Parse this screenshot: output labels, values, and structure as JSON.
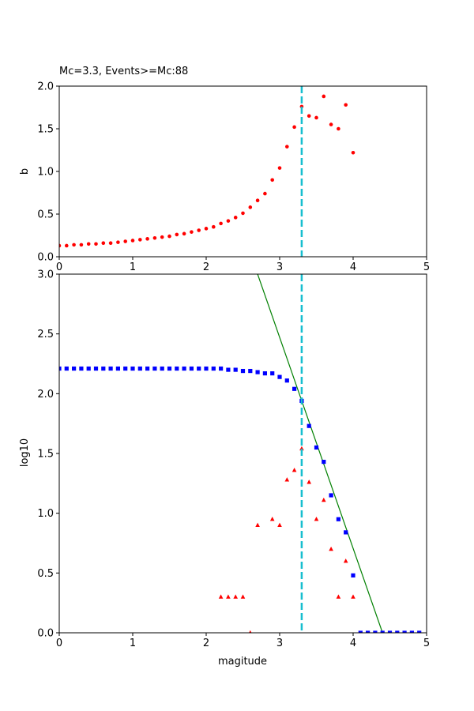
{
  "chart_data": [
    {
      "type": "scatter",
      "title": "Mc=3.3, Events>=Mc:88",
      "xlabel": "",
      "ylabel": "b",
      "xlim": [
        0,
        5
      ],
      "ylim": [
        0,
        2.0
      ],
      "xticks": [
        "0",
        "1",
        "2",
        "3",
        "4",
        "5"
      ],
      "yticks": [
        "0.0",
        "0.5",
        "1.0",
        "1.5",
        "2.0"
      ],
      "grid": false,
      "mc_line": {
        "x": 3.3,
        "color": "#17becf",
        "style": "dashed"
      },
      "series": [
        {
          "marker": "circle",
          "color": "#ff0000",
          "x": [
            0.0,
            0.1,
            0.2,
            0.3,
            0.4,
            0.5,
            0.6,
            0.7,
            0.8,
            0.9,
            1.0,
            1.1,
            1.2,
            1.3,
            1.4,
            1.5,
            1.6,
            1.7,
            1.8,
            1.9,
            2.0,
            2.1,
            2.2,
            2.3,
            2.4,
            2.5,
            2.6,
            2.7,
            2.8,
            2.9,
            3.0,
            3.1,
            3.2,
            3.3,
            3.4,
            3.5,
            3.6,
            3.7,
            3.8,
            3.9,
            4.0
          ],
          "y": [
            0.13,
            0.13,
            0.14,
            0.14,
            0.15,
            0.15,
            0.16,
            0.16,
            0.17,
            0.18,
            0.19,
            0.2,
            0.21,
            0.22,
            0.23,
            0.24,
            0.26,
            0.27,
            0.29,
            0.31,
            0.33,
            0.35,
            0.39,
            0.42,
            0.46,
            0.51,
            0.58,
            0.66,
            0.74,
            0.9,
            1.04,
            1.29,
            1.52,
            1.76,
            1.65,
            1.63,
            1.88,
            1.55,
            1.5,
            1.78,
            1.22
          ]
        }
      ]
    },
    {
      "type": "scatter",
      "title": "",
      "xlabel": "magitude",
      "ylabel": "log10",
      "xlim": [
        0,
        5
      ],
      "ylim": [
        0,
        3.0
      ],
      "xticks": [
        "0",
        "1",
        "2",
        "3",
        "4",
        "5"
      ],
      "yticks": [
        "0.0",
        "0.5",
        "1.0",
        "1.5",
        "2.0",
        "2.5",
        "3.0"
      ],
      "grid": false,
      "mc_line": {
        "x": 3.3,
        "color": "#17becf",
        "style": "dashed"
      },
      "fit_line": {
        "color": "#008000",
        "x": [
          2.7,
          4.4
        ],
        "y": [
          3.0,
          0.0
        ]
      },
      "series": [
        {
          "marker": "square",
          "color": "#0000ff",
          "x": [
            0.0,
            0.1,
            0.2,
            0.3,
            0.4,
            0.5,
            0.6,
            0.7,
            0.8,
            0.9,
            1.0,
            1.1,
            1.2,
            1.3,
            1.4,
            1.5,
            1.6,
            1.7,
            1.8,
            1.9,
            2.0,
            2.1,
            2.2,
            2.3,
            2.4,
            2.5,
            2.6,
            2.7,
            2.8,
            2.9,
            3.0,
            3.1,
            3.2,
            3.3,
            3.4,
            3.5,
            3.6,
            3.7,
            3.8,
            3.9,
            4.0,
            4.1,
            4.2,
            4.3,
            4.4,
            4.5,
            4.6,
            4.7,
            4.8,
            4.9
          ],
          "y": [
            2.21,
            2.21,
            2.21,
            2.21,
            2.21,
            2.21,
            2.21,
            2.21,
            2.21,
            2.21,
            2.21,
            2.21,
            2.21,
            2.21,
            2.21,
            2.21,
            2.21,
            2.21,
            2.21,
            2.21,
            2.21,
            2.21,
            2.21,
            2.2,
            2.2,
            2.19,
            2.19,
            2.18,
            2.17,
            2.17,
            2.14,
            2.11,
            2.04,
            1.94,
            1.73,
            1.55,
            1.43,
            1.15,
            0.95,
            0.84,
            0.48,
            0.0,
            0.0,
            0.0,
            0.0,
            0.0,
            0.0,
            0.0,
            0.0,
            0.0
          ]
        },
        {
          "marker": "triangle",
          "color": "#ff0000",
          "x": [
            2.2,
            2.3,
            2.4,
            2.5,
            2.6,
            2.7,
            2.9,
            3.0,
            3.1,
            3.2,
            3.3,
            3.4,
            3.5,
            3.6,
            3.7,
            3.8,
            3.9,
            4.0
          ],
          "y": [
            0.3,
            0.3,
            0.3,
            0.3,
            0.0,
            0.9,
            0.95,
            0.9,
            1.28,
            1.36,
            1.54,
            1.26,
            0.95,
            1.11,
            0.7,
            0.3,
            0.6,
            0.3
          ]
        }
      ]
    }
  ]
}
